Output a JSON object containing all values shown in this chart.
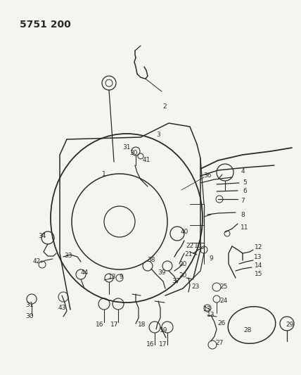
{
  "title": "5751 200",
  "bg": "#f5f5f0",
  "lc": "#2a2a2a",
  "fig_w": 4.28,
  "fig_h": 5.33,
  "dpi": 100,
  "label_fs": 6.5,
  "title_fs": 10,
  "lw_main": 1.0,
  "lw_thin": 0.7
}
